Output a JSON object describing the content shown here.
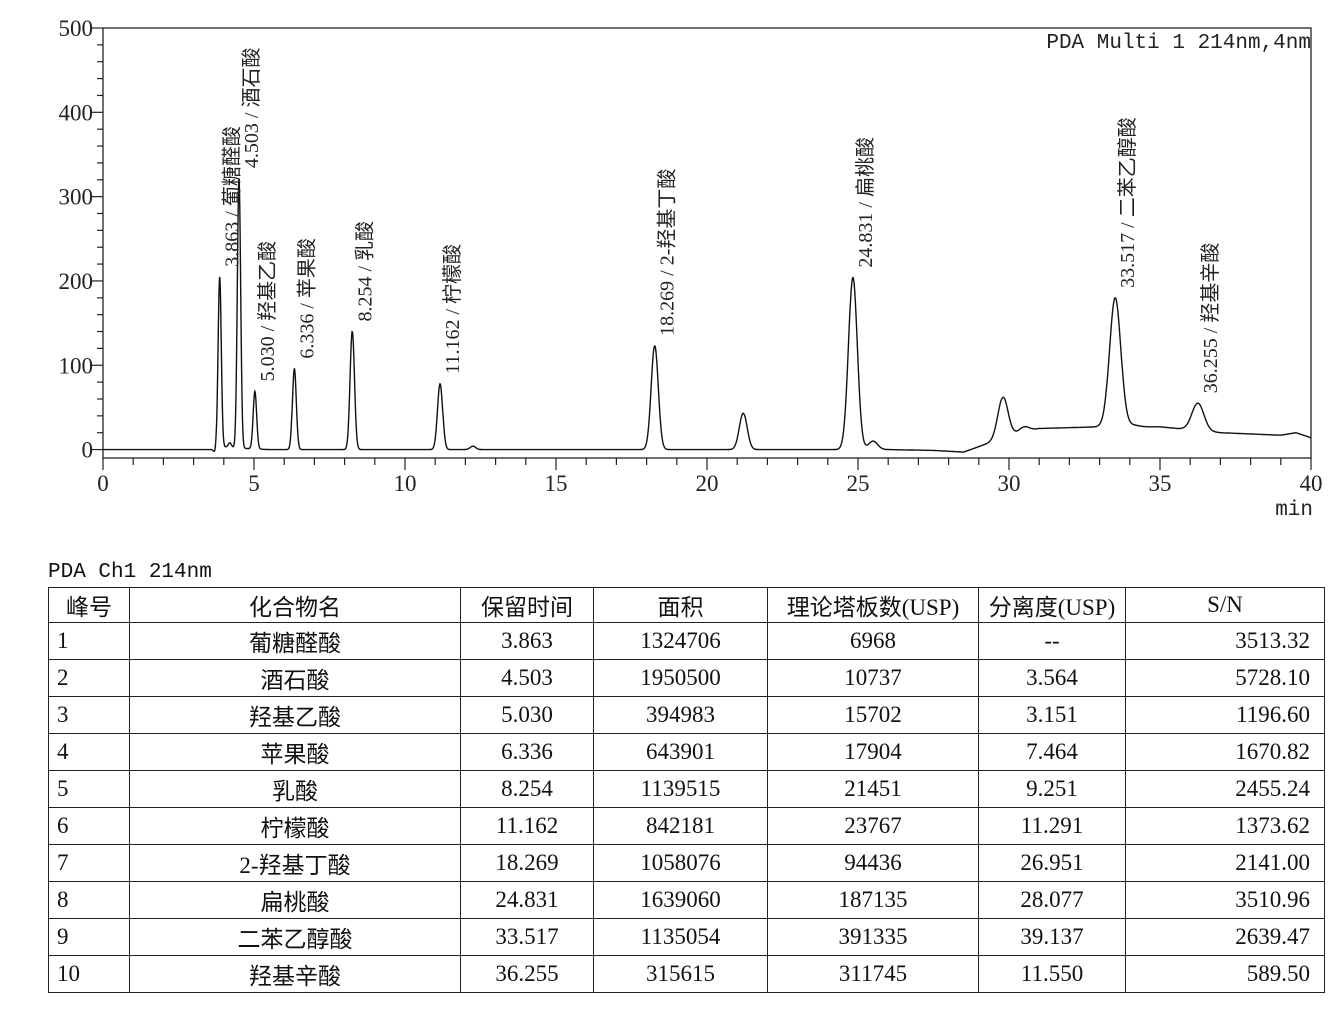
{
  "chart_data": {
    "type": "line",
    "legend": "PDA Multi 1 214nm,4nm",
    "xlabel": "min",
    "ylabel": "",
    "xlim": [
      0,
      40
    ],
    "ylim": [
      -10,
      500
    ],
    "x_ticks": [
      0,
      5,
      10,
      15,
      20,
      25,
      30,
      35,
      40
    ],
    "y_ticks": [
      0,
      100,
      200,
      300,
      400,
      500
    ],
    "grid": false,
    "line_color": "#111111",
    "peaks": [
      {
        "rt": 3.863,
        "height": 205,
        "label": "3.863 / 葡糖醛酸"
      },
      {
        "rt": 4.503,
        "height": 322,
        "label": "4.503 / 酒石酸"
      },
      {
        "rt": 5.03,
        "height": 69,
        "label": "5.030 / 羟基乙酸"
      },
      {
        "rt": 6.336,
        "height": 96,
        "label": "6.336 / 苹果酸"
      },
      {
        "rt": 8.254,
        "height": 140,
        "label": "8.254 / 乳酸"
      },
      {
        "rt": 11.162,
        "height": 78,
        "label": "11.162 / 柠檬酸"
      },
      {
        "rt": 18.269,
        "height": 123,
        "label": "18.269 / 2-羟基丁酸"
      },
      {
        "rt": 24.831,
        "height": 204,
        "label": "24.831 / 扁桃酸"
      },
      {
        "rt": 33.517,
        "height": 180,
        "label": "33.517 / 二苯乙醇酸"
      },
      {
        "rt": 36.255,
        "height": 55,
        "label": "36.255 / 羟基辛酸"
      }
    ],
    "unlabeled_peaks": [
      {
        "rt": 4.2,
        "height": 8
      },
      {
        "rt": 12.25,
        "height": 4
      },
      {
        "rt": 21.2,
        "height": 43
      },
      {
        "rt": 25.5,
        "height": 10
      },
      {
        "rt": 29.8,
        "height": 62
      },
      {
        "rt": 30.5,
        "height": 27
      },
      {
        "rt": 34.1,
        "height": 29
      }
    ],
    "baseline": [
      [
        0,
        0
      ],
      [
        3.6,
        0
      ],
      [
        3.7,
        -3
      ],
      [
        3.8,
        4
      ],
      [
        4.3,
        2
      ],
      [
        5.5,
        0
      ],
      [
        20,
        0
      ],
      [
        26,
        0
      ],
      [
        27.5,
        -1
      ],
      [
        28.5,
        -3
      ],
      [
        29.5,
        10
      ],
      [
        30.2,
        18
      ],
      [
        31,
        25
      ],
      [
        33,
        27
      ],
      [
        35,
        27
      ],
      [
        37,
        20
      ],
      [
        39,
        17
      ],
      [
        39.5,
        20
      ],
      [
        40,
        14
      ]
    ]
  },
  "table": {
    "caption": "PDA Ch1 214nm",
    "headers": [
      "峰号",
      "化合物名",
      "保留时间",
      "面积",
      "理论塔板数(USP)",
      "分离度(USP)",
      "S/N"
    ],
    "rows": [
      [
        "1",
        "葡糖醛酸",
        "3.863",
        "1324706",
        "6968",
        "--",
        "3513.32"
      ],
      [
        "2",
        "酒石酸",
        "4.503",
        "1950500",
        "10737",
        "3.564",
        "5728.10"
      ],
      [
        "3",
        "羟基乙酸",
        "5.030",
        "394983",
        "15702",
        "3.151",
        "1196.60"
      ],
      [
        "4",
        "苹果酸",
        "6.336",
        "643901",
        "17904",
        "7.464",
        "1670.82"
      ],
      [
        "5",
        "乳酸",
        "8.254",
        "1139515",
        "21451",
        "9.251",
        "2455.24"
      ],
      [
        "6",
        "柠檬酸",
        "11.162",
        "842181",
        "23767",
        "11.291",
        "1373.62"
      ],
      [
        "7",
        "2-羟基丁酸",
        "18.269",
        "1058076",
        "94436",
        "26.951",
        "2141.00"
      ],
      [
        "8",
        "扁桃酸",
        "24.831",
        "1639060",
        "187135",
        "28.077",
        "3510.96"
      ],
      [
        "9",
        "二苯乙醇酸",
        "33.517",
        "1135054",
        "391335",
        "39.137",
        "2639.47"
      ],
      [
        "10",
        "羟基辛酸",
        "36.255",
        "315615",
        "311745",
        "11.550",
        "589.50"
      ]
    ]
  }
}
